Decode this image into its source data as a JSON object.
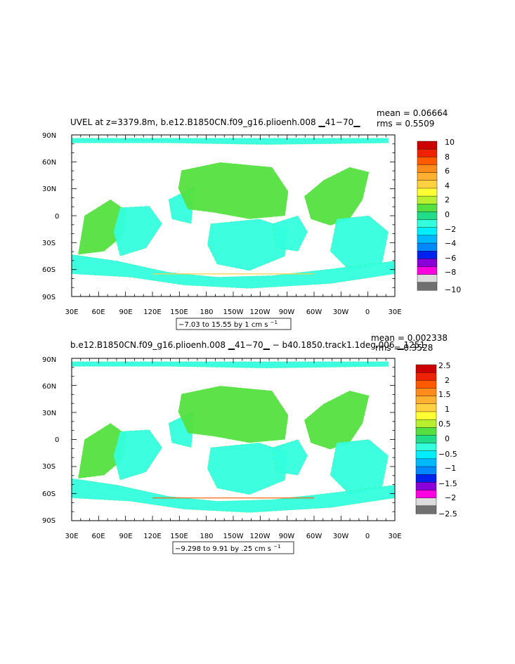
{
  "panels": [
    {
      "title": "UVEL at z=3379.8m, b.e12.B1850CN.f09_g16.plioenh.008 ▁41−70▁",
      "mean": "mean = 0.06664",
      "rms": "rms = 0.5509",
      "range_label": "−7.03 to 15.55 by 1 cm s",
      "range_sup": "−1",
      "lat_ticks": [
        "90N",
        "60N",
        "30N",
        "0",
        "30S",
        "60S",
        "90S"
      ],
      "lon_ticks": [
        "30E",
        "60E",
        "90E",
        "120E",
        "150E",
        "180",
        "150W",
        "120W",
        "90W",
        "60W",
        "30W",
        "0",
        "30E"
      ],
      "colorbar_labels": [
        "10",
        "8",
        "6",
        "4",
        "2",
        "0",
        "−2",
        "−4",
        "−6",
        "−8",
        "−10"
      ],
      "colorbar_colors": [
        "#cc0000",
        "#ee2200",
        "#ff5a00",
        "#ff8c1a",
        "#ffb030",
        "#ffd040",
        "#ffff33",
        "#b8f030",
        "#55e040",
        "#22dd88",
        "#33ffdd",
        "#00eeff",
        "#00b8ff",
        "#0088ff",
        "#0022ee",
        "#8a00d8",
        "#ff00e0",
        "#dcdcdc",
        "#707070"
      ]
    },
    {
      "title": "b.e12.B1850CN.f09_g16.plioenh.008 ▁41−70▁ − b40.1850.track1.1deg.006 ▁1251·",
      "mean": "mean = 0.002338",
      "rms": "rms = 0.3528",
      "range_label": "−9.298 to 9.91 by .25 cm s",
      "range_sup": "−1",
      "lat_ticks": [
        "90N",
        "60N",
        "30N",
        "0",
        "30S",
        "60S",
        "90S"
      ],
      "lon_ticks": [
        "30E",
        "60E",
        "90E",
        "120E",
        "150E",
        "180",
        "150W",
        "120W",
        "90W",
        "60W",
        "30W",
        "0",
        "30E"
      ],
      "colorbar_labels": [
        "2.5",
        "2",
        "1.5",
        "1",
        "0.5",
        "0",
        "−0.5",
        "−1",
        "−1.5",
        "−2",
        "−2.5"
      ],
      "colorbar_colors": [
        "#cc0000",
        "#ee2200",
        "#ff5a00",
        "#ff8c1a",
        "#ffb030",
        "#ffd040",
        "#ffff33",
        "#b8f030",
        "#55e040",
        "#22dd88",
        "#33ffdd",
        "#00eeff",
        "#00b8ff",
        "#0088ff",
        "#0022ee",
        "#8a00d8",
        "#ff00e0",
        "#dcdcdc",
        "#707070"
      ]
    }
  ],
  "colors": {
    "field_main": "#33ffdd",
    "field_pos": "#55e040",
    "field_neg": "#00eeff",
    "land": "#ffffff",
    "frame": "#000000"
  }
}
